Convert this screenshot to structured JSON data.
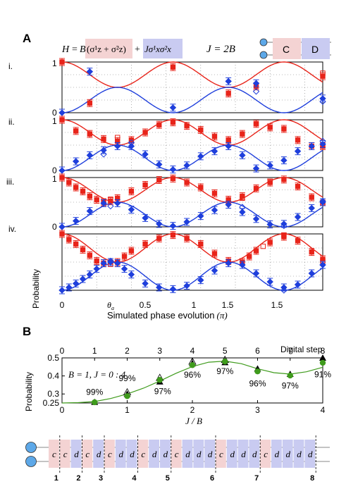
{
  "panelA": {
    "label": "A",
    "hamiltonian": "H = B(σ¹z + σ²z) + Jσ¹xσ²x",
    "hamiltonian_parts": {
      "H": "H",
      "eq": "=",
      "B": "B",
      "term_c": "(σ¹z + σ²z)",
      "plus": "+",
      "term_d": "Jσ¹xσ²x"
    },
    "relation": "J = 2B",
    "legend_c": "C",
    "legend_d": "D",
    "row_labels": [
      "i.",
      "ii.",
      "iii.",
      "iv."
    ],
    "ytick_top": "1",
    "ytick_bottom": "0",
    "ylabel": "Probability",
    "xlabel": "Simulated phase evolution",
    "xlabel_unit": "(π)",
    "xticks": [
      "0",
      "θa",
      "0.5",
      "1",
      "1.5",
      "1.5"
    ],
    "theta_label": "θ",
    "theta_sub": "a"
  },
  "panelB": {
    "label": "B",
    "top_axis_label": "Digital step",
    "params": "B = 1, J = 0 : 4",
    "ylabel": "Probability",
    "xlabel": "J / B",
    "fidelity_labels": [
      "99%",
      "99%",
      "97%",
      "96%",
      "97%",
      "96%",
      "97%",
      "91%"
    ],
    "sequence_letters": [
      "c",
      "c",
      "d",
      "c",
      "d",
      "c",
      "d",
      "d",
      "c",
      "d",
      "d",
      "c",
      "d",
      "d",
      "d",
      "c",
      "d",
      "d",
      "d",
      "c",
      "d",
      "d",
      "d",
      "d"
    ],
    "sequence_step_numbers": [
      "1",
      "2",
      "3",
      "4",
      "5",
      "6",
      "7",
      "8"
    ]
  },
  "colors": {
    "red": "#e8241a",
    "blue": "#1f3fdc",
    "green": "#3f9b1c",
    "pink_box": "#f4d3d3",
    "lavender_box": "#c9cbf1"
  },
  "chart_data": [
    {
      "type": "line",
      "title": "A",
      "xlabel": "Simulated phase evolution (π)",
      "ylabel": "Probability",
      "xlim": [
        0,
        1.88
      ],
      "ylim": [
        0,
        1
      ],
      "rows": [
        {
          "name": "i.",
          "theory_red": {
            "x": [
              0,
              0.3,
              0.8,
              1.3,
              1.88
            ],
            "note": "cosine"
          },
          "red_filled": [
            [
              0,
              1
            ],
            [
              0.2,
              0.19
            ],
            [
              0.8,
              0.9
            ],
            [
              1.2,
              0.38
            ],
            [
              1.4,
              0.52
            ],
            [
              1.88,
              0.72
            ]
          ],
          "red_open": [
            [
              1.88,
              0.78
            ]
          ],
          "blue_filled": [
            [
              0,
              0
            ],
            [
              0.2,
              0.81
            ],
            [
              0.8,
              0.1
            ],
            [
              1.2,
              0.62
            ],
            [
              1.4,
              0.58
            ],
            [
              1.88,
              0.28
            ]
          ],
          "blue_open": [
            [
              1.4,
              0.42
            ],
            [
              1.88,
              0.22
            ]
          ]
        },
        {
          "name": "ii.",
          "red_filled": [
            [
              0,
              1
            ],
            [
              0.1,
              0.78
            ],
            [
              0.2,
              0.72
            ],
            [
              0.3,
              0.62
            ],
            [
              0.4,
              0.58
            ],
            [
              0.5,
              0.6
            ],
            [
              0.6,
              0.75
            ],
            [
              0.7,
              0.9
            ],
            [
              0.8,
              0.95
            ],
            [
              0.9,
              0.88
            ],
            [
              1.0,
              0.8
            ],
            [
              1.1,
              0.67
            ],
            [
              1.2,
              0.6
            ],
            [
              1.3,
              0.72
            ],
            [
              1.4,
              0.92
            ],
            [
              1.5,
              0.85
            ],
            [
              1.6,
              0.82
            ],
            [
              1.7,
              0.6
            ],
            [
              1.8,
              0.48
            ],
            [
              1.88,
              0.48
            ]
          ],
          "red_open": [
            [
              0.4,
              0.65
            ],
            [
              1.4,
              0.92
            ],
            [
              1.88,
              0.48
            ]
          ],
          "blue_filled": [
            [
              0,
              0
            ],
            [
              0.1,
              0.18
            ],
            [
              0.2,
              0.3
            ],
            [
              0.3,
              0.4
            ],
            [
              0.4,
              0.48
            ],
            [
              0.5,
              0.48
            ],
            [
              0.6,
              0.32
            ],
            [
              0.7,
              0.12
            ],
            [
              0.8,
              0.02
            ],
            [
              0.9,
              0.1
            ],
            [
              1.0,
              0.28
            ],
            [
              1.1,
              0.38
            ],
            [
              1.2,
              0.48
            ],
            [
              1.3,
              0.3
            ],
            [
              1.4,
              0.04
            ],
            [
              1.5,
              0.1
            ],
            [
              1.6,
              0.2
            ],
            [
              1.7,
              0.38
            ],
            [
              1.8,
              0.48
            ],
            [
              1.88,
              0.52
            ]
          ],
          "blue_open": [
            [
              0.3,
              0.32
            ],
            [
              0.5,
              0.55
            ],
            [
              1.88,
              0.58
            ]
          ]
        },
        {
          "name": "iii.",
          "red_filled": [
            [
              0,
              1
            ],
            [
              0.05,
              0.9
            ],
            [
              0.1,
              0.8
            ],
            [
              0.15,
              0.72
            ],
            [
              0.2,
              0.62
            ],
            [
              0.25,
              0.55
            ],
            [
              0.3,
              0.5
            ],
            [
              0.35,
              0.52
            ],
            [
              0.4,
              0.58
            ],
            [
              0.5,
              0.72
            ],
            [
              0.6,
              0.85
            ],
            [
              0.7,
              0.95
            ],
            [
              0.8,
              0.98
            ],
            [
              0.9,
              0.9
            ],
            [
              1.0,
              0.8
            ],
            [
              1.1,
              0.68
            ],
            [
              1.2,
              0.55
            ],
            [
              1.3,
              0.62
            ],
            [
              1.4,
              0.78
            ],
            [
              1.5,
              0.9
            ],
            [
              1.6,
              0.96
            ],
            [
              1.7,
              0.82
            ],
            [
              1.8,
              0.6
            ],
            [
              1.88,
              0.5
            ]
          ],
          "red_open": [
            [
              0.35,
              0.56
            ],
            [
              1.3,
              0.58
            ],
            [
              1.5,
              0.92
            ],
            [
              1.88,
              0.48
            ]
          ],
          "blue_filled": [
            [
              0,
              0
            ],
            [
              0.1,
              0.12
            ],
            [
              0.2,
              0.32
            ],
            [
              0.3,
              0.48
            ],
            [
              0.4,
              0.48
            ],
            [
              0.5,
              0.35
            ],
            [
              0.6,
              0.18
            ],
            [
              0.7,
              0.06
            ],
            [
              0.8,
              0.02
            ],
            [
              0.9,
              0.1
            ],
            [
              1.0,
              0.22
            ],
            [
              1.1,
              0.34
            ],
            [
              1.2,
              0.45
            ],
            [
              1.3,
              0.3
            ],
            [
              1.4,
              0.16
            ],
            [
              1.5,
              0.05
            ],
            [
              1.6,
              0.06
            ],
            [
              1.7,
              0.2
            ],
            [
              1.8,
              0.38
            ],
            [
              1.88,
              0.5
            ]
          ],
          "blue_open": [
            [
              0.35,
              0.42
            ],
            [
              1.3,
              0.4
            ],
            [
              1.6,
              0.02
            ],
            [
              1.88,
              0.52
            ]
          ]
        },
        {
          "name": "iv.",
          "red_filled": [
            [
              0,
              1
            ],
            [
              0.05,
              0.9
            ],
            [
              0.1,
              0.82
            ],
            [
              0.15,
              0.72
            ],
            [
              0.2,
              0.62
            ],
            [
              0.25,
              0.52
            ],
            [
              0.3,
              0.48
            ],
            [
              0.35,
              0.5
            ],
            [
              0.4,
              0.5
            ],
            [
              0.45,
              0.6
            ],
            [
              0.5,
              0.7
            ],
            [
              0.6,
              0.82
            ],
            [
              0.7,
              0.92
            ],
            [
              0.8,
              0.98
            ],
            [
              0.9,
              0.92
            ],
            [
              1.0,
              0.82
            ],
            [
              1.1,
              0.65
            ],
            [
              1.2,
              0.52
            ],
            [
              1.3,
              0.5
            ],
            [
              1.35,
              0.6
            ],
            [
              1.4,
              0.7
            ],
            [
              1.5,
              0.85
            ],
            [
              1.6,
              0.95
            ],
            [
              1.7,
              0.88
            ],
            [
              1.8,
              0.68
            ],
            [
              1.88,
              0.55
            ]
          ],
          "red_open": [
            [
              0.35,
              0.46
            ],
            [
              1.45,
              0.78
            ],
            [
              1.6,
              0.98
            ],
            [
              1.88,
              0.52
            ]
          ],
          "blue_filled": [
            [
              0,
              0
            ],
            [
              0.05,
              0.05
            ],
            [
              0.1,
              0.12
            ],
            [
              0.15,
              0.2
            ],
            [
              0.2,
              0.28
            ],
            [
              0.25,
              0.38
            ],
            [
              0.3,
              0.48
            ],
            [
              0.35,
              0.5
            ],
            [
              0.4,
              0.48
            ],
            [
              0.45,
              0.38
            ],
            [
              0.5,
              0.28
            ],
            [
              0.6,
              0.12
            ],
            [
              0.7,
              0.05
            ],
            [
              0.8,
              0.02
            ],
            [
              0.9,
              0.08
            ],
            [
              1.0,
              0.18
            ],
            [
              1.1,
              0.35
            ],
            [
              1.2,
              0.48
            ],
            [
              1.3,
              0.45
            ],
            [
              1.4,
              0.3
            ],
            [
              1.5,
              0.15
            ],
            [
              1.6,
              0.05
            ],
            [
              1.7,
              0.1
            ],
            [
              1.8,
              0.3
            ],
            [
              1.88,
              0.45
            ]
          ],
          "blue_open": [
            [
              0.35,
              0.52
            ],
            [
              1.6,
              0.0
            ],
            [
              1.88,
              0.45
            ]
          ]
        }
      ]
    },
    {
      "type": "scatter",
      "title": "B",
      "xlabel": "J / B",
      "ylabel": "Probability",
      "top_xlabel": "Digital step",
      "xlim": [
        0,
        4
      ],
      "ylim": [
        0.25,
        0.5
      ],
      "xticks": [
        0,
        1,
        2,
        3,
        4
      ],
      "yticks": [
        0.25,
        0.3,
        0.4,
        0.5
      ],
      "top_xticks": [
        0,
        1,
        2,
        3,
        4,
        5,
        6,
        7,
        8
      ],
      "theory_line": {
        "x": [
          0,
          0.25,
          0.5,
          0.75,
          1,
          1.25,
          1.5,
          1.75,
          2,
          2.25,
          2.5,
          2.75,
          3,
          3.25,
          3.5,
          3.75,
          4
        ],
        "y": [
          0.25,
          0.252,
          0.258,
          0.275,
          0.3,
          0.332,
          0.372,
          0.415,
          0.452,
          0.476,
          0.482,
          0.468,
          0.44,
          0.418,
          0.41,
          0.423,
          0.448
        ]
      },
      "series": [
        {
          "name": "black",
          "x": [
            0.5,
            1,
            1.5,
            2,
            2.5,
            3,
            3.5,
            4
          ],
          "y": [
            0.255,
            0.3,
            0.368,
            0.47,
            0.475,
            0.44,
            0.41,
            0.5
          ]
        },
        {
          "name": "open",
          "x": [
            1,
            1.5,
            2,
            2.5
          ],
          "y": [
            0.31,
            0.39,
            0.48,
            0.49
          ]
        },
        {
          "name": "green",
          "x": [
            0.5,
            1,
            1.5,
            2,
            2.5,
            3,
            3.5,
            4
          ],
          "y": [
            0.254,
            0.288,
            0.378,
            0.46,
            0.48,
            0.425,
            0.402,
            0.473
          ]
        }
      ]
    }
  ]
}
